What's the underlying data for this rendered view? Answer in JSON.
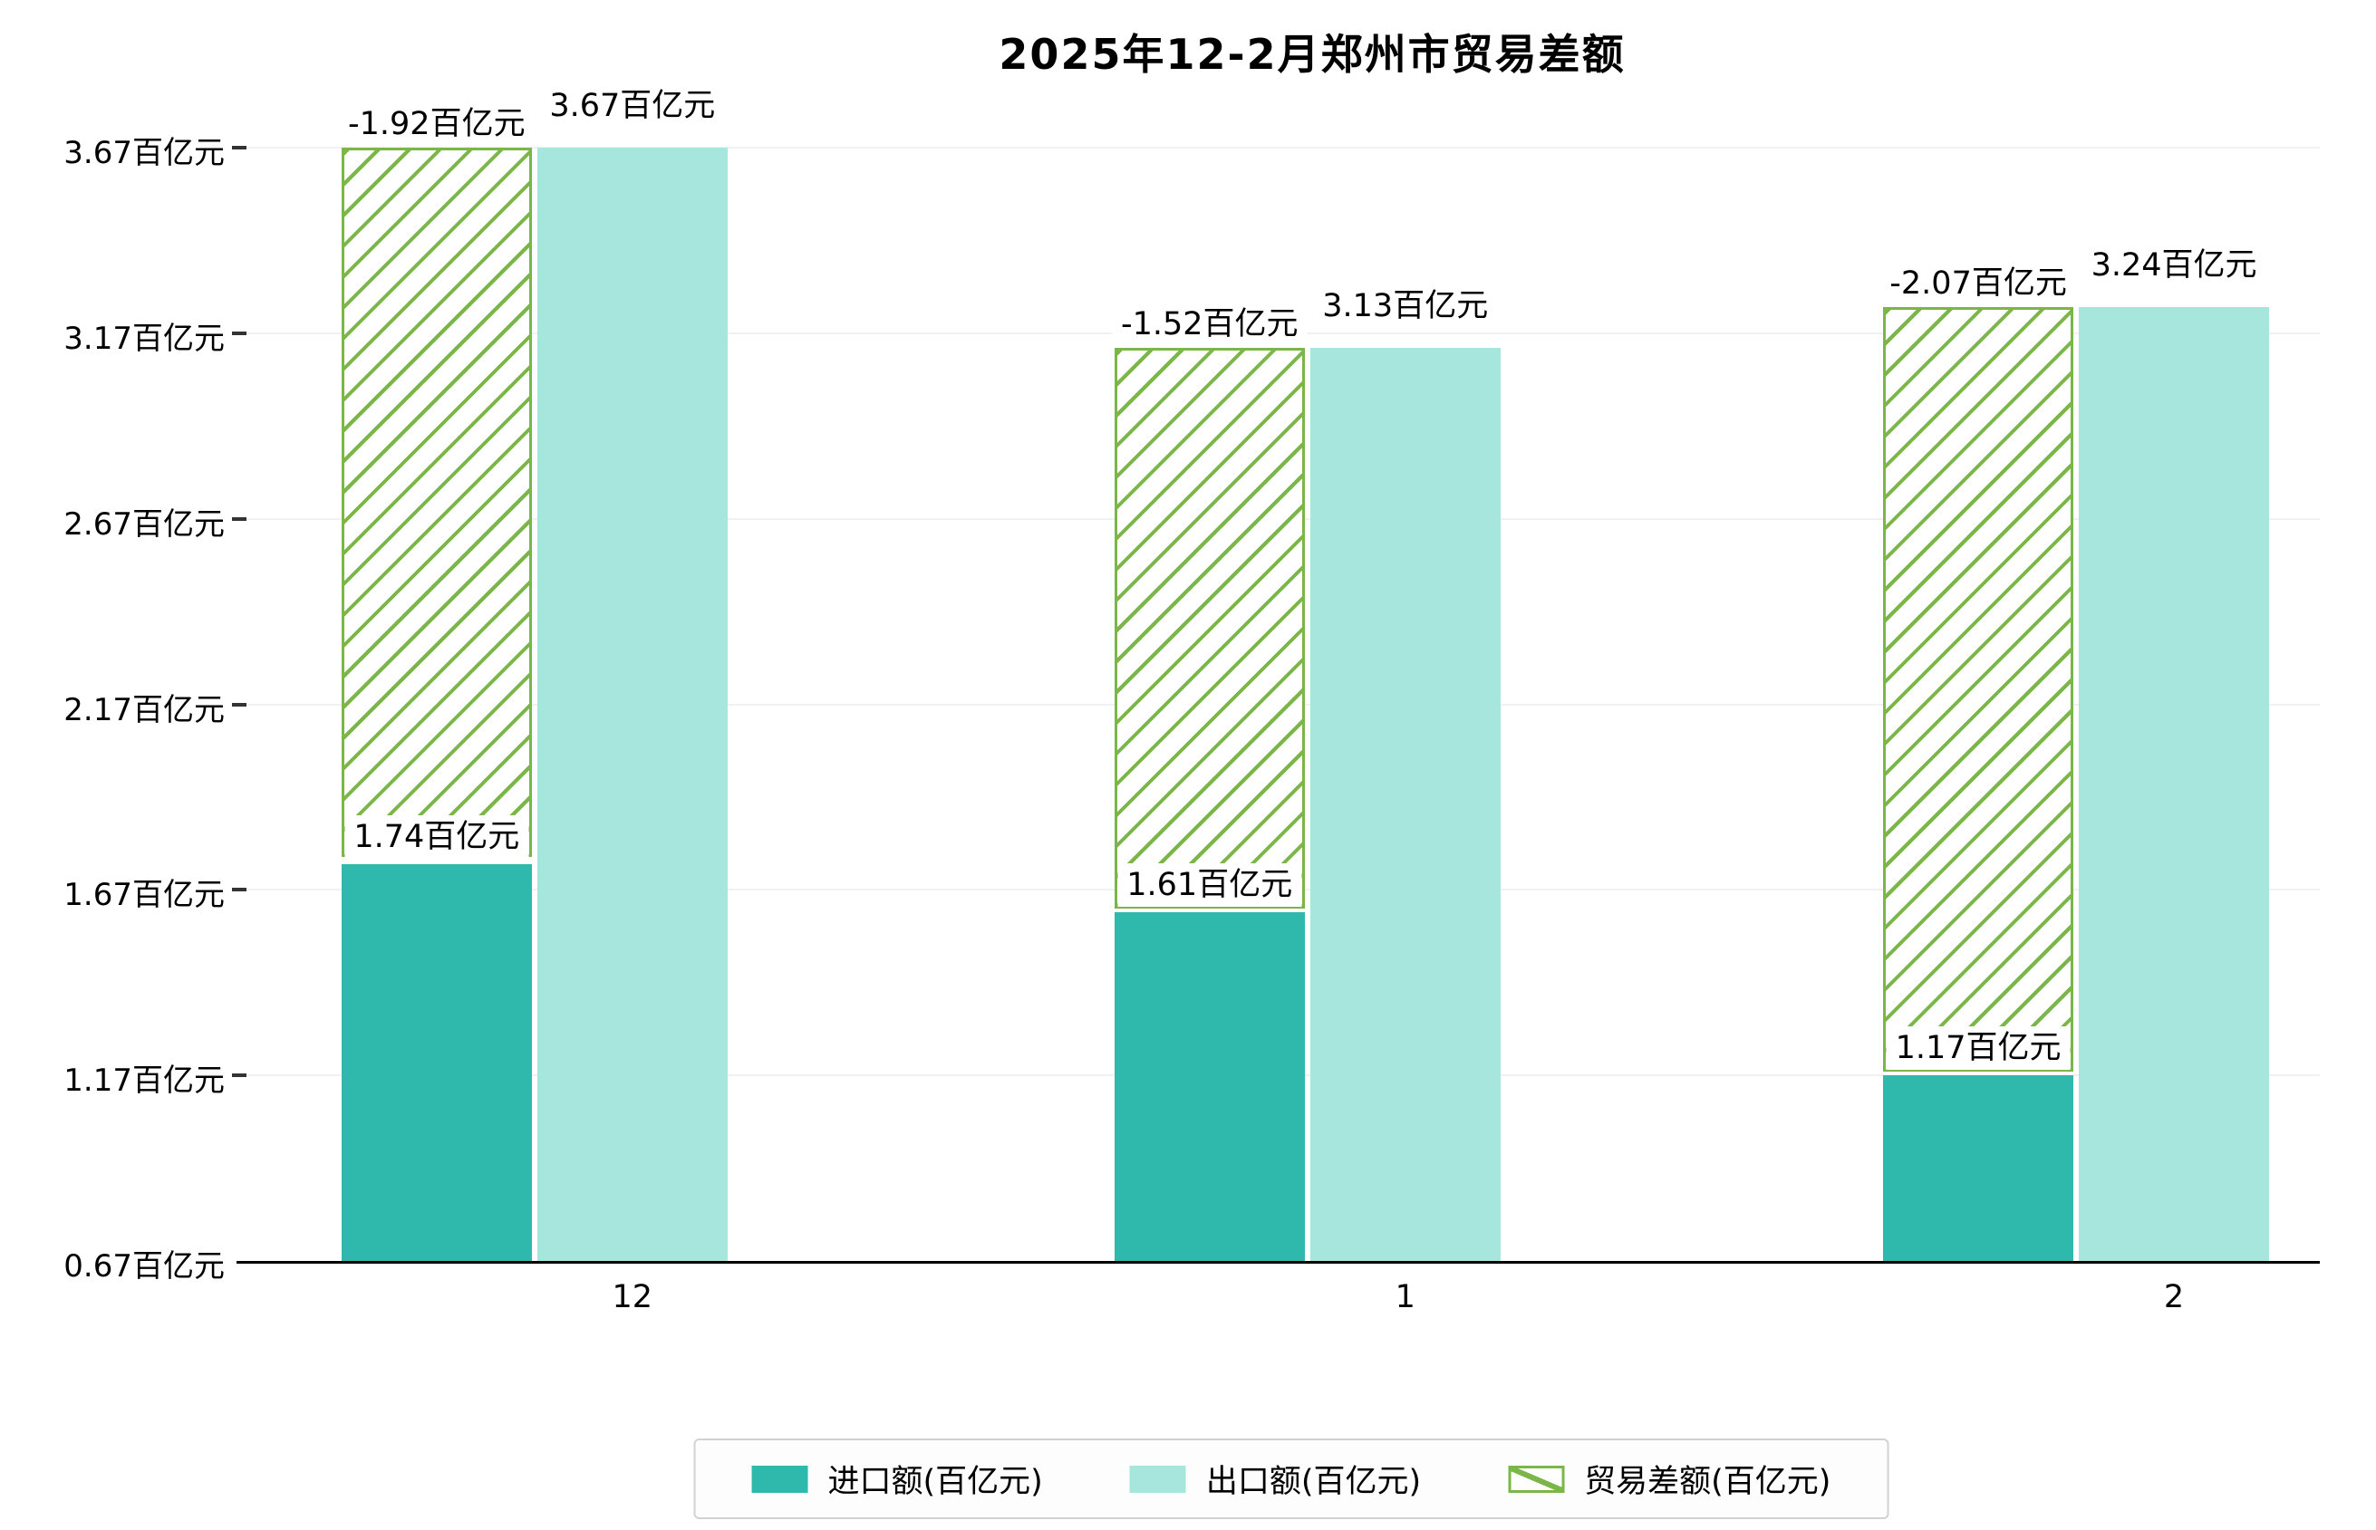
{
  "title": "2025年12-2月郑州市贸易差额",
  "chart_data": {
    "type": "bar",
    "title": "2025年12-2月郑州市贸易差额",
    "categories": [
      "12",
      "1",
      "2"
    ],
    "unit": "百亿元",
    "series": [
      {
        "name": "进口额(百亿元)",
        "role": "import",
        "values": [
          1.74,
          1.61,
          1.17
        ],
        "labels": [
          "1.74百亿元",
          "1.61百亿元",
          "1.17百亿元"
        ],
        "color": "#2eb9ac",
        "swatch": "solid"
      },
      {
        "name": "出口额(百亿元)",
        "role": "export",
        "values": [
          3.67,
          3.13,
          3.24
        ],
        "labels": [
          "3.67百亿元",
          "3.13百亿元",
          "3.24百亿元"
        ],
        "color": "#a7e6dc",
        "swatch": "solid"
      },
      {
        "name": "贸易差额(百亿元)",
        "role": "trade-balance",
        "values": [
          -1.92,
          -1.52,
          -2.07
        ],
        "labels": [
          "-1.92百亿元",
          "-1.52百亿元",
          "-2.07百亿元"
        ],
        "color": "#7ab648",
        "swatch": "hatch"
      }
    ],
    "y_axis": {
      "min": 0.67,
      "max": 3.67,
      "ticks": [
        {
          "value": 3.67,
          "label": "3.67百亿元"
        },
        {
          "value": 3.17,
          "label": "3.17百亿元"
        },
        {
          "value": 2.67,
          "label": "2.67百亿元"
        },
        {
          "value": 2.17,
          "label": "2.17百亿元"
        },
        {
          "value": 1.67,
          "label": "1.67百亿元"
        },
        {
          "value": 1.17,
          "label": "1.17百亿元"
        },
        {
          "value": 0.67,
          "label": "0.67百亿元"
        }
      ]
    },
    "x_ticks": [
      "12",
      "1",
      "2"
    ],
    "legend": [
      "进口额(百亿元)",
      "出口额(百亿元)",
      "贸易差额(百亿元)"
    ],
    "legend_position": "bottom",
    "grid": true,
    "xlabel": "",
    "ylabel": ""
  }
}
